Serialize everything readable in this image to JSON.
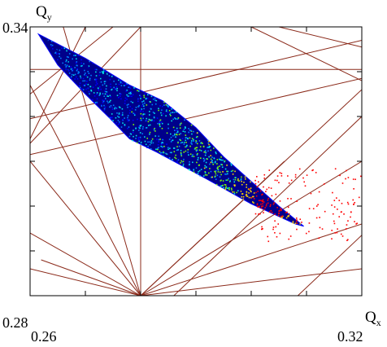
{
  "chart_data": {
    "type": "scatter",
    "description_free": true,
    "xlabel": "Q",
    "xlabel_sub": "x",
    "ylabel": "Q",
    "ylabel_sub": "y",
    "xlim": [
      0.26,
      0.32
    ],
    "ylim": [
      0.28,
      0.34
    ],
    "x_tick_labels": [
      "0.26",
      "0.32"
    ],
    "y_tick_labels": [
      "0.28",
      "0.34"
    ],
    "grid": false,
    "colormap": [
      "#00008b",
      "#0000ff",
      "#0080ff",
      "#00e5e5",
      "#7fff00",
      "#ffd700",
      "#ff0000"
    ],
    "resonance_line_color": "#8b2a1a",
    "footprint_outline": [
      [
        0.2615,
        0.3384
      ],
      [
        0.27,
        0.333
      ],
      [
        0.278,
        0.327
      ],
      [
        0.284,
        0.3235
      ],
      [
        0.29,
        0.3175
      ],
      [
        0.295,
        0.311
      ],
      [
        0.3,
        0.3055
      ],
      [
        0.305,
        0.3
      ],
      [
        0.3095,
        0.2955
      ],
      [
        0.308,
        0.296
      ],
      [
        0.3,
        0.3005
      ],
      [
        0.292,
        0.306
      ],
      [
        0.283,
        0.312
      ],
      [
        0.278,
        0.315
      ],
      [
        0.2745,
        0.3195
      ],
      [
        0.27,
        0.325
      ],
      [
        0.265,
        0.3315
      ],
      [
        0.2615,
        0.3384
      ]
    ],
    "hot_spot": [
      0.304,
      0.302
    ],
    "resonance_lines": [
      [
        0.26,
        0.3305,
        0.32,
        0.3305
      ],
      [
        0.26,
        0.28,
        0.32,
        0.28
      ],
      [
        0.28,
        0.34,
        0.28,
        0.28
      ],
      [
        0.28,
        0.28,
        0.266,
        0.34
      ],
      [
        0.28,
        0.28,
        0.26,
        0.327
      ],
      [
        0.28,
        0.28,
        0.26,
        0.31
      ],
      [
        0.28,
        0.28,
        0.26,
        0.294
      ],
      [
        0.28,
        0.28,
        0.26,
        0.286
      ],
      [
        0.28,
        0.28,
        0.32,
        0.326
      ],
      [
        0.28,
        0.28,
        0.32,
        0.31
      ],
      [
        0.28,
        0.28,
        0.32,
        0.296
      ],
      [
        0.28,
        0.28,
        0.32,
        0.286
      ],
      [
        0.28,
        0.28,
        0.272,
        0.276
      ],
      [
        0.28,
        0.28,
        0.275,
        0.276
      ],
      [
        0.28,
        0.28,
        0.278,
        0.276
      ],
      [
        0.28,
        0.28,
        0.283,
        0.276
      ],
      [
        0.28,
        0.28,
        0.288,
        0.276
      ],
      [
        0.28,
        0.28,
        0.306,
        0.31
      ],
      [
        0.28,
        0.28,
        0.262,
        0.288
      ],
      [
        0.26,
        0.3195,
        0.32,
        0.337
      ],
      [
        0.26,
        0.3115,
        0.32,
        0.3285
      ],
      [
        0.26,
        0.325,
        0.275,
        0.34
      ],
      [
        0.26,
        0.315,
        0.27,
        0.34
      ],
      [
        0.27,
        0.34,
        0.28,
        0.34
      ],
      [
        0.305,
        0.34,
        0.32,
        0.3355
      ],
      [
        0.3,
        0.34,
        0.32,
        0.328
      ],
      [
        0.28,
        0.34,
        0.26,
        0.314
      ],
      [
        0.32,
        0.2935,
        0.305,
        0.276
      ],
      [
        0.32,
        0.32,
        0.286,
        0.28
      ]
    ]
  }
}
